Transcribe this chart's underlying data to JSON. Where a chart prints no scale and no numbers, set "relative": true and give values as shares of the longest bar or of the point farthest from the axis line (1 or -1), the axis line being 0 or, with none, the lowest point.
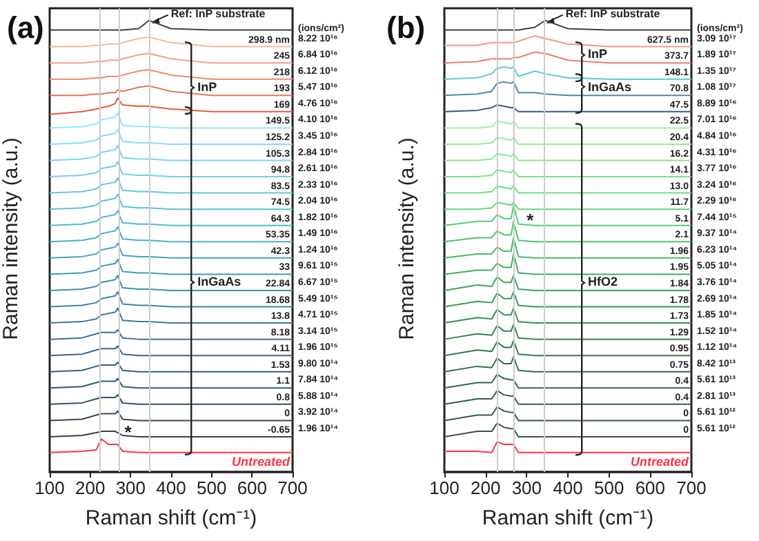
{
  "chart_data": [
    {
      "type": "line",
      "title": "(a)",
      "xlabel": "Raman shift (cm⁻¹)",
      "ylabel": "Raman intensity (a.u.)",
      "relative": true,
      "tick_labels": "x",
      "xlim": [
        100,
        700
      ],
      "xticks": [
        100,
        200,
        300,
        400,
        500,
        600,
        700
      ],
      "x": [
        100,
        180,
        215,
        228,
        245,
        262,
        268,
        280,
        320,
        345,
        400,
        500,
        700
      ],
      "ref_lines": [
        {
          "axis": "x",
          "value": 225,
          "color": "#cccccc"
        },
        {
          "axis": "x",
          "value": 270,
          "color": "#cccccc"
        },
        {
          "axis": "x",
          "value": 345,
          "color": "#cccccc"
        }
      ],
      "series": [
        {
          "color": "#404040",
          "values": [
            0.979,
            0.979,
            0.979,
            0.979,
            0.979,
            0.979,
            0.979,
            0.979,
            0.982,
            1.0,
            0.982,
            0.979,
            0.979
          ]
        },
        {
          "name": "298.9 nm",
          "color": "#f8b8a0",
          "values": [
            0.942,
            0.942,
            0.945,
            0.945,
            0.948,
            0.948,
            0.948,
            0.951,
            0.96,
            0.963,
            0.951,
            0.942,
            0.942
          ]
        },
        {
          "name": "245",
          "color": "#f4a080",
          "values": [
            0.906,
            0.906,
            0.909,
            0.909,
            0.912,
            0.912,
            0.912,
            0.915,
            0.924,
            0.927,
            0.915,
            0.906,
            0.906
          ]
        },
        {
          "name": "218",
          "color": "#f08a68",
          "values": [
            0.87,
            0.87,
            0.873,
            0.873,
            0.876,
            0.876,
            0.876,
            0.879,
            0.888,
            0.891,
            0.879,
            0.87,
            0.87
          ]
        },
        {
          "name": "193",
          "color": "#ec7050",
          "values": [
            0.834,
            0.834,
            0.837,
            0.837,
            0.84,
            0.84,
            0.846,
            0.843,
            0.852,
            0.855,
            0.843,
            0.834,
            0.834
          ]
        },
        {
          "name": "169",
          "color": "#e65a3a",
          "values": [
            0.792,
            0.798,
            0.804,
            0.807,
            0.81,
            0.816,
            0.828,
            0.813,
            0.81,
            0.81,
            0.804,
            0.798,
            0.798
          ]
        },
        {
          "name": "149.5",
          "color": "#8ee8f0",
          "values": [
            0.762,
            0.765,
            0.771,
            0.78,
            0.783,
            0.786,
            0.795,
            0.768,
            0.765,
            0.765,
            0.762,
            0.762,
            0.762
          ]
        },
        {
          "name": "125.2",
          "color": "#84e0ea",
          "values": [
            0.726,
            0.729,
            0.735,
            0.744,
            0.747,
            0.75,
            0.759,
            0.732,
            0.729,
            0.729,
            0.726,
            0.726,
            0.726
          ]
        },
        {
          "name": "105.3",
          "color": "#7ad8e4",
          "values": [
            0.69,
            0.693,
            0.699,
            0.708,
            0.711,
            0.714,
            0.723,
            0.696,
            0.693,
            0.693,
            0.69,
            0.69,
            0.69
          ]
        },
        {
          "name": "94.8",
          "color": "#70d0de",
          "values": [
            0.654,
            0.657,
            0.663,
            0.672,
            0.675,
            0.678,
            0.687,
            0.66,
            0.657,
            0.657,
            0.654,
            0.654,
            0.654
          ]
        },
        {
          "name": "83.5",
          "color": "#66c8d8",
          "values": [
            0.618,
            0.621,
            0.627,
            0.636,
            0.639,
            0.642,
            0.651,
            0.624,
            0.621,
            0.621,
            0.618,
            0.618,
            0.618
          ]
        },
        {
          "name": "74.5",
          "color": "#5cc0d2",
          "values": [
            0.582,
            0.585,
            0.591,
            0.6,
            0.603,
            0.606,
            0.615,
            0.588,
            0.585,
            0.585,
            0.582,
            0.582,
            0.582
          ]
        },
        {
          "name": "64.3",
          "color": "#52b8cc",
          "values": [
            0.546,
            0.549,
            0.555,
            0.564,
            0.567,
            0.57,
            0.579,
            0.552,
            0.549,
            0.549,
            0.546,
            0.546,
            0.546
          ]
        },
        {
          "name": "53.35",
          "color": "#4ab0c4",
          "values": [
            0.51,
            0.513,
            0.519,
            0.528,
            0.531,
            0.534,
            0.543,
            0.516,
            0.513,
            0.513,
            0.51,
            0.51,
            0.51
          ]
        },
        {
          "name": "42.3",
          "color": "#44a6ba",
          "values": [
            0.474,
            0.477,
            0.483,
            0.492,
            0.495,
            0.498,
            0.507,
            0.48,
            0.477,
            0.477,
            0.474,
            0.474,
            0.474
          ]
        },
        {
          "name": "33",
          "color": "#409cb0",
          "values": [
            0.438,
            0.441,
            0.447,
            0.456,
            0.459,
            0.462,
            0.471,
            0.444,
            0.441,
            0.441,
            0.438,
            0.438,
            0.438
          ]
        },
        {
          "name": "22.84",
          "color": "#3c92a6",
          "values": [
            0.402,
            0.405,
            0.411,
            0.42,
            0.423,
            0.426,
            0.435,
            0.408,
            0.405,
            0.405,
            0.402,
            0.402,
            0.402
          ]
        },
        {
          "name": "18.68",
          "color": "#3a889c",
          "values": [
            0.366,
            0.369,
            0.375,
            0.384,
            0.387,
            0.39,
            0.399,
            0.372,
            0.369,
            0.369,
            0.366,
            0.366,
            0.366
          ]
        },
        {
          "name": "13.8",
          "color": "#387e92",
          "values": [
            0.33,
            0.333,
            0.339,
            0.348,
            0.351,
            0.354,
            0.363,
            0.336,
            0.333,
            0.333,
            0.33,
            0.33,
            0.33
          ]
        },
        {
          "name": "8.18",
          "color": "#367488",
          "values": [
            0.294,
            0.297,
            0.306,
            0.309,
            0.309,
            0.309,
            0.315,
            0.297,
            0.294,
            0.294,
            0.294,
            0.294,
            0.294
          ]
        },
        {
          "name": "4.11",
          "color": "#356a7e",
          "values": [
            0.258,
            0.261,
            0.27,
            0.273,
            0.273,
            0.273,
            0.279,
            0.261,
            0.258,
            0.258,
            0.258,
            0.258,
            0.258
          ]
        },
        {
          "name": "1.53",
          "color": "#346074",
          "values": [
            0.222,
            0.225,
            0.234,
            0.237,
            0.237,
            0.237,
            0.243,
            0.225,
            0.222,
            0.222,
            0.222,
            0.222,
            0.222
          ]
        },
        {
          "name": "1.1",
          "color": "#34586a",
          "values": [
            0.186,
            0.189,
            0.198,
            0.201,
            0.201,
            0.201,
            0.207,
            0.189,
            0.186,
            0.186,
            0.186,
            0.186,
            0.186
          ]
        },
        {
          "name": "0.8",
          "color": "#345062",
          "values": [
            0.15,
            0.153,
            0.162,
            0.165,
            0.165,
            0.165,
            0.171,
            0.153,
            0.15,
            0.15,
            0.15,
            0.15,
            0.15
          ]
        },
        {
          "name": "0",
          "color": "#34485a",
          "values": [
            0.114,
            0.117,
            0.126,
            0.129,
            0.129,
            0.129,
            0.135,
            0.117,
            0.114,
            0.114,
            0.114,
            0.114,
            0.114
          ]
        },
        {
          "name": "-0.65",
          "color": "#344252",
          "values": [
            0.078,
            0.081,
            0.087,
            0.09,
            0.09,
            0.09,
            0.087,
            0.081,
            0.078,
            0.078,
            0.078,
            0.078,
            0.078
          ]
        },
        {
          "name": "Untreated",
          "color": "#ff3344",
          "values": [
            0.043,
            0.046,
            0.049,
            0.073,
            0.061,
            0.061,
            0.061,
            0.046,
            0.043,
            0.043,
            0.043,
            0.043,
            0.043
          ]
        }
      ],
      "annotations": [
        "(ions/cm²)",
        "8.22 10¹⁶",
        "6.84 10¹⁶",
        "6.12 10¹⁶",
        "5.47 10¹⁶",
        "4.76 10¹⁶",
        "4.10 10¹⁶",
        "3.45 10¹⁶",
        "2.84 10¹⁶",
        "2.61 10¹⁶",
        "2.33 10¹⁶",
        "2.04 10¹⁶",
        "1.82 10¹⁶",
        "1.49 10¹⁶",
        "1.24 10¹⁶",
        "9.61 10¹⁵",
        "6.67 10¹⁵",
        "5.49 10¹⁵",
        "4.71 10¹⁵",
        "3.14 10¹⁵",
        "1.96 10¹⁵",
        "9.80 10¹⁴",
        "7.84 10¹⁴",
        "5.88 10¹⁴",
        "3.92 10¹⁴",
        "1.96 10¹⁴",
        {
          "text": "Ref: InP substrate",
          "x": 345,
          "y": 1.0
        },
        "InP",
        "InGaAs",
        {
          "text": "*",
          "x": 285,
          "y": 0.09
        }
      ]
    },
    {
      "type": "line",
      "title": "(b)",
      "xlabel": "Raman shift (cm⁻¹)",
      "ylabel": "Raman intensity (a.u.)",
      "relative": true,
      "tick_labels": "x",
      "xlim": [
        100,
        700
      ],
      "xticks": [
        100,
        200,
        300,
        400,
        500,
        600,
        700
      ],
      "x": [
        100,
        180,
        215,
        228,
        245,
        262,
        268,
        280,
        320,
        345,
        400,
        500,
        700
      ],
      "ref_lines": [
        {
          "axis": "x",
          "value": 227,
          "color": "#cccccc"
        },
        {
          "axis": "x",
          "value": 268,
          "color": "#cccccc"
        },
        {
          "axis": "x",
          "value": 341,
          "color": "#cccccc"
        }
      ],
      "series": [
        {
          "color": "#404040",
          "values": [
            0.979,
            0.979,
            0.979,
            0.979,
            0.979,
            0.979,
            0.979,
            0.979,
            0.985,
            1.0,
            0.982,
            0.979,
            0.979
          ]
        },
        {
          "name": "627.5 nm",
          "color": "#f59a80",
          "values": [
            0.945,
            0.945,
            0.951,
            0.951,
            0.951,
            0.951,
            0.951,
            0.954,
            0.966,
            0.96,
            0.948,
            0.942,
            0.942
          ]
        },
        {
          "name": "373.7",
          "color": "#e8806a",
          "values": [
            0.906,
            0.909,
            0.915,
            0.915,
            0.915,
            0.915,
            0.918,
            0.918,
            0.93,
            0.927,
            0.912,
            0.906,
            0.906
          ]
        },
        {
          "name": "148.1",
          "color": "#5cc8d8",
          "values": [
            0.87,
            0.873,
            0.882,
            0.894,
            0.897,
            0.894,
            0.897,
            0.876,
            0.888,
            0.882,
            0.873,
            0.87,
            0.87
          ]
        },
        {
          "name": "70.8",
          "color": "#4a8ab0",
          "values": [
            0.834,
            0.837,
            0.843,
            0.861,
            0.864,
            0.861,
            0.864,
            0.84,
            0.84,
            0.837,
            0.834,
            0.834,
            0.834
          ]
        },
        {
          "name": "47.5",
          "color": "#3a5a80",
          "values": [
            0.798,
            0.801,
            0.807,
            0.813,
            0.81,
            0.807,
            0.807,
            0.798,
            0.798,
            0.798,
            0.798,
            0.798,
            0.798
          ]
        },
        {
          "name": "22.5",
          "color": "#a0f0a8",
          "values": [
            0.762,
            0.762,
            0.765,
            0.777,
            0.774,
            0.771,
            0.777,
            0.762,
            0.762,
            0.762,
            0.762,
            0.762,
            0.762
          ]
        },
        {
          "name": "20.4",
          "color": "#94eca0",
          "values": [
            0.726,
            0.726,
            0.729,
            0.741,
            0.738,
            0.735,
            0.741,
            0.726,
            0.726,
            0.726,
            0.726,
            0.726,
            0.726
          ]
        },
        {
          "name": "16.2",
          "color": "#88e898",
          "values": [
            0.69,
            0.69,
            0.693,
            0.705,
            0.702,
            0.699,
            0.705,
            0.69,
            0.69,
            0.69,
            0.69,
            0.69,
            0.69
          ]
        },
        {
          "name": "14.1",
          "color": "#7ce290",
          "values": [
            0.654,
            0.654,
            0.657,
            0.669,
            0.666,
            0.663,
            0.669,
            0.654,
            0.654,
            0.654,
            0.654,
            0.654,
            0.654
          ]
        },
        {
          "name": "13.0",
          "color": "#70dc88",
          "values": [
            0.618,
            0.618,
            0.621,
            0.633,
            0.63,
            0.627,
            0.633,
            0.618,
            0.618,
            0.618,
            0.618,
            0.618,
            0.618
          ]
        },
        {
          "name": "11.7",
          "color": "#64d480",
          "values": [
            0.582,
            0.582,
            0.585,
            0.597,
            0.594,
            0.591,
            0.597,
            0.582,
            0.582,
            0.582,
            0.582,
            0.582,
            0.582
          ]
        },
        {
          "name": "5.1",
          "color": "#58cc78",
          "values": [
            0.546,
            0.555,
            0.555,
            0.57,
            0.561,
            0.561,
            0.591,
            0.549,
            0.546,
            0.546,
            0.546,
            0.546,
            0.546
          ]
        },
        {
          "name": "2.1",
          "color": "#4ec270",
          "values": [
            0.51,
            0.519,
            0.519,
            0.534,
            0.525,
            0.525,
            0.555,
            0.513,
            0.51,
            0.51,
            0.51,
            0.51,
            0.51
          ]
        },
        {
          "name": "1.96",
          "color": "#46b868",
          "values": [
            0.474,
            0.483,
            0.483,
            0.498,
            0.489,
            0.489,
            0.519,
            0.477,
            0.474,
            0.474,
            0.474,
            0.474,
            0.474
          ]
        },
        {
          "name": "1.95",
          "color": "#40ae62",
          "values": [
            0.438,
            0.447,
            0.447,
            0.462,
            0.453,
            0.453,
            0.483,
            0.441,
            0.438,
            0.438,
            0.438,
            0.438,
            0.438
          ]
        },
        {
          "name": "1.84",
          "color": "#3aa45c",
          "values": [
            0.402,
            0.414,
            0.411,
            0.432,
            0.42,
            0.42,
            0.435,
            0.405,
            0.402,
            0.402,
            0.402,
            0.402,
            0.402
          ]
        },
        {
          "name": "1.78",
          "color": "#369a56",
          "values": [
            0.366,
            0.378,
            0.375,
            0.396,
            0.384,
            0.384,
            0.399,
            0.369,
            0.366,
            0.366,
            0.366,
            0.366,
            0.366
          ]
        },
        {
          "name": "1.73",
          "color": "#329050",
          "values": [
            0.33,
            0.342,
            0.339,
            0.36,
            0.348,
            0.348,
            0.363,
            0.333,
            0.33,
            0.33,
            0.33,
            0.33,
            0.33
          ]
        },
        {
          "name": "1.29",
          "color": "#30864c",
          "values": [
            0.294,
            0.306,
            0.303,
            0.324,
            0.312,
            0.312,
            0.327,
            0.297,
            0.294,
            0.294,
            0.294,
            0.294,
            0.294
          ]
        },
        {
          "name": "0.95",
          "color": "#2e7c48",
          "values": [
            0.258,
            0.27,
            0.267,
            0.288,
            0.276,
            0.276,
            0.291,
            0.261,
            0.258,
            0.258,
            0.258,
            0.258,
            0.258
          ]
        },
        {
          "name": "0.75",
          "color": "#2e7246",
          "values": [
            0.222,
            0.234,
            0.231,
            0.252,
            0.24,
            0.24,
            0.255,
            0.225,
            0.222,
            0.222,
            0.222,
            0.222,
            0.222
          ]
        },
        {
          "name": "0.4",
          "color": "#306844",
          "values": [
            0.186,
            0.198,
            0.198,
            0.216,
            0.207,
            0.204,
            0.204,
            0.186,
            0.186,
            0.186,
            0.186,
            0.186,
            0.186
          ]
        },
        {
          "name": "0.4",
          "color": "#345e46",
          "values": [
            0.15,
            0.162,
            0.162,
            0.18,
            0.171,
            0.168,
            0.168,
            0.15,
            0.15,
            0.15,
            0.15,
            0.15,
            0.15
          ]
        },
        {
          "name": "0",
          "color": "#38564a",
          "values": [
            0.114,
            0.126,
            0.126,
            0.144,
            0.135,
            0.132,
            0.132,
            0.114,
            0.114,
            0.114,
            0.114,
            0.114,
            0.114
          ]
        },
        {
          "name": "0",
          "color": "#3c5050",
          "values": [
            0.078,
            0.09,
            0.09,
            0.108,
            0.099,
            0.096,
            0.096,
            0.078,
            0.078,
            0.078,
            0.078,
            0.078,
            0.078
          ]
        },
        {
          "name": "Untreated",
          "color": "#ff3344",
          "values": [
            0.046,
            0.046,
            0.043,
            0.067,
            0.061,
            0.061,
            0.061,
            0.043,
            0.043,
            0.043,
            0.043,
            0.043,
            0.043
          ]
        }
      ],
      "annotations": [
        "(ions/cm²)",
        "3.09 10¹⁷",
        "1.89 10¹⁷",
        "1.35 10¹⁷",
        "1.08 10¹⁷",
        "8.89 10¹⁶",
        "7.01 10¹⁶",
        "4.84 10¹⁶",
        "4.31 10¹⁶",
        "3.77 10¹⁶",
        "3.24 10¹⁶",
        "2.29 10¹⁶",
        "7.44 10¹⁵",
        "9.37 10¹⁴",
        "6.23 10¹⁴",
        "5.05 10¹⁴",
        "3.76 10¹⁴",
        "2.69 10¹⁴",
        "1.85 10¹⁴",
        "1.52 10¹⁴",
        "1.12 10¹⁴",
        "8.42 10¹³",
        "5.61 10¹³",
        "2.81 10¹³",
        "5.61 10¹²",
        "5.61 10¹²",
        {
          "text": "Ref: InP substrate",
          "x": 341,
          "y": 1.0
        },
        "InP",
        "InGaAs",
        "HfO2",
        {
          "text": "*",
          "x": 300,
          "y": 0.56
        }
      ]
    }
  ]
}
